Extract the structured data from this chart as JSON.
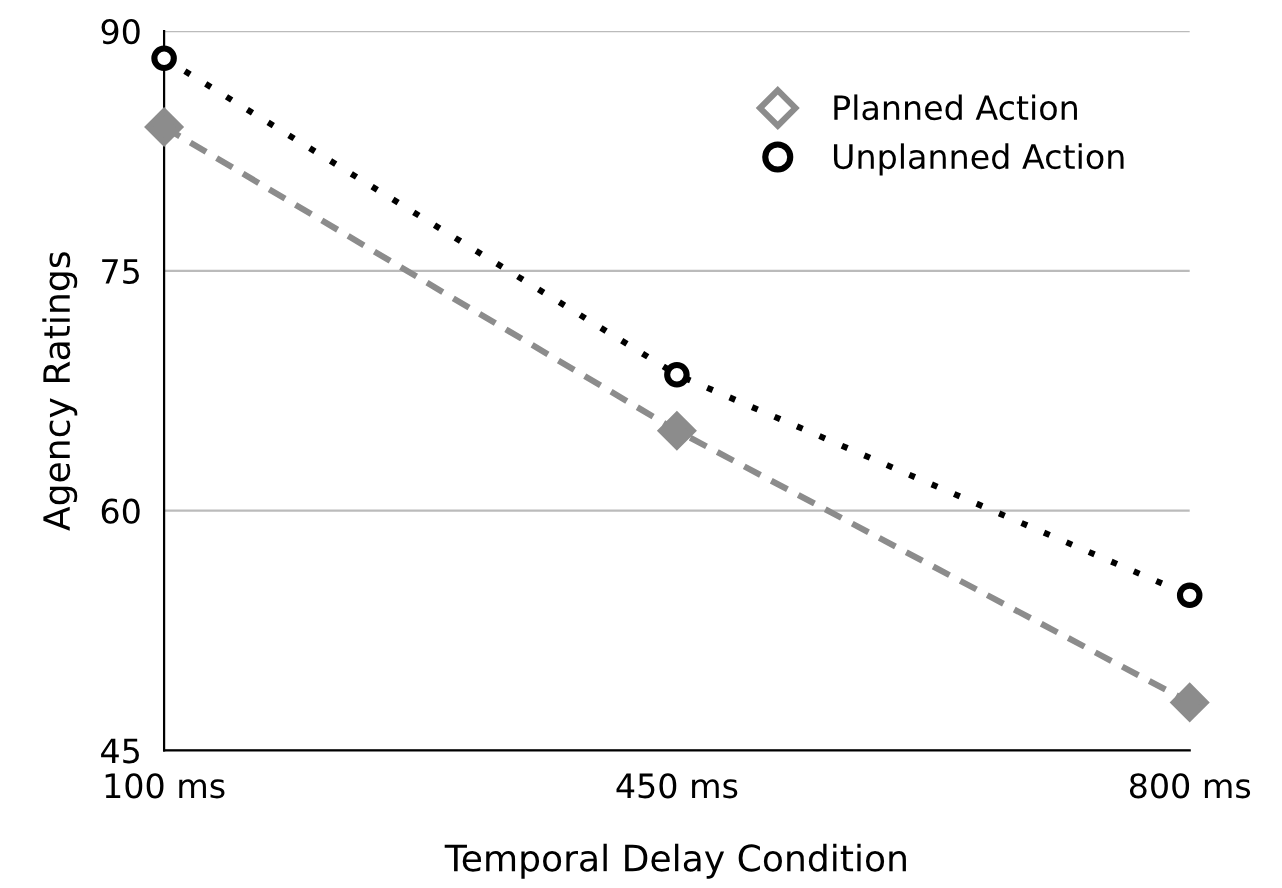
{
  "chart_data": {
    "type": "line",
    "xlabel": "Temporal Delay Condition",
    "ylabel": "Agency Ratings",
    "categories": [
      "100 ms",
      "450 ms",
      "800 ms"
    ],
    "series": [
      {
        "name": "Planned Action",
        "color": "#8c8c8c",
        "values": [
          84,
          65,
          48
        ],
        "marker": "diamond",
        "line_style": "dashed"
      },
      {
        "name": "Unplanned Action",
        "color": "#000000",
        "values": [
          88.3,
          68.5,
          54.7
        ],
        "marker": "circle",
        "line_style": "dotted"
      }
    ],
    "ylim": [
      45,
      90
    ],
    "yticks": [
      45,
      60,
      75,
      90
    ],
    "grid": "y",
    "legend": "top right"
  }
}
